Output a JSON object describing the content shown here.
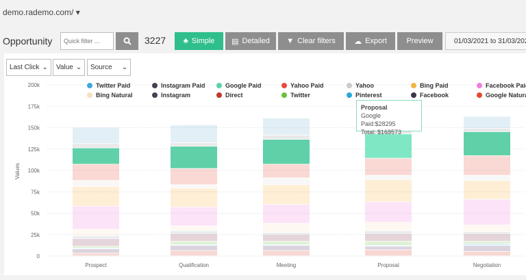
{
  "header": {
    "url": "demo.rademo.com/",
    "url_caret": "▾"
  },
  "toolbar": {
    "title": "Opportunity",
    "quick_filter_placeholder": "Quick filter ...",
    "count": "3227",
    "simple": "Simple",
    "detailed": "Detailed",
    "clear_filters": "Clear filters",
    "export": "Export",
    "preview": "Preview",
    "date_range": "01/03/2021 to 31/03/2021"
  },
  "selectors": [
    {
      "value": "Last Click"
    },
    {
      "value": "Value"
    },
    {
      "value": "Source"
    }
  ],
  "tooltip": {
    "title": "Proposal",
    "line1": "Google Paid:$28295",
    "line2": "Total: $168573"
  },
  "chart_data": {
    "type": "bar",
    "stacked": true,
    "ylabel": "Values",
    "ylim": [
      0,
      200000
    ],
    "yticks": [
      "0",
      "25k",
      "50k",
      "75k",
      "100k",
      "125k",
      "150k",
      "175k",
      "200k"
    ],
    "grid": true,
    "legend_position": "top",
    "highlighted_series": "Google Paid",
    "categories": [
      "Prospect",
      "Qualification",
      "Meeting",
      "Proposal",
      "Negotiation"
    ],
    "legend": [
      {
        "name": "Twitter Paid",
        "color": "#3fa9d9"
      },
      {
        "name": "Instagram Paid",
        "color": "#4a3f55"
      },
      {
        "name": "Google Paid",
        "color": "#5fd0a8"
      },
      {
        "name": "Yahoo Paid",
        "color": "#e74c3c"
      },
      {
        "name": "Yahoo",
        "color": "#cccccc"
      },
      {
        "name": "Bing Paid",
        "color": "#f5b342"
      },
      {
        "name": "Facebook Paid",
        "color": "#f07ee0"
      },
      {
        "name": "Bing Natural",
        "color": "#f7dfc0"
      },
      {
        "name": "Instagram",
        "color": "#4a3f55"
      },
      {
        "name": "Direct",
        "color": "#c0392b"
      },
      {
        "name": "Twitter",
        "color": "#6cbf3f"
      },
      {
        "name": "Pinterest",
        "color": "#2aa7dc"
      },
      {
        "name": "Facebook",
        "color": "#3d3548"
      },
      {
        "name": "Google Natural",
        "color": "#e04a32"
      }
    ],
    "series": [
      {
        "name": "Google Natural",
        "color": "#e04a32",
        "values": [
          3000,
          6000,
          6000,
          7000,
          5000
        ]
      },
      {
        "name": "Facebook",
        "color": "#5b3d6e",
        "values": [
          5000,
          6000,
          6000,
          4000,
          7000
        ]
      },
      {
        "name": "Pinterest",
        "color": "#2aa7dc",
        "values": [
          1000,
          1000,
          1000,
          1000,
          2000
        ]
      },
      {
        "name": "Twitter",
        "color": "#6cbf3f",
        "values": [
          2000,
          4000,
          4000,
          5000,
          3000
        ]
      },
      {
        "name": "Instagram",
        "color": "#8a3f55",
        "values": [
          9000,
          9000,
          8000,
          9000,
          9000
        ]
      },
      {
        "name": "Direct",
        "color": "#8aa0b0",
        "values": [
          3000,
          3000,
          2000,
          3000,
          2000
        ]
      },
      {
        "name": "Bing Natural",
        "color": "#f7dfc0",
        "values": [
          8000,
          6000,
          11000,
          10000,
          8000
        ]
      },
      {
        "name": "Facebook Paid",
        "color": "#f07ee0",
        "values": [
          27000,
          22000,
          22000,
          24000,
          30000
        ]
      },
      {
        "name": "Bing Paid",
        "color": "#f5b342",
        "values": [
          23000,
          22000,
          23000,
          26000,
          22000
        ]
      },
      {
        "name": "Instagram Paid",
        "color": "#dddddd",
        "values": [
          7000,
          4000,
          8000,
          5000,
          6000
        ]
      },
      {
        "name": "Yahoo Paid",
        "color": "#e74c3c",
        "values": [
          19000,
          19000,
          16000,
          20000,
          23000
        ]
      },
      {
        "name": "Google Paid",
        "color": "#5fd0a8",
        "values": [
          19000,
          26000,
          29000,
          28295,
          28000
        ]
      },
      {
        "name": "Yahoo",
        "color": "#999999",
        "values": [
          5000,
          4000,
          5000,
          4000,
          4000
        ]
      },
      {
        "name": "Twitter Paid",
        "color": "#7fb8d4",
        "values": [
          19000,
          21000,
          20000,
          22278,
          14000
        ]
      }
    ]
  }
}
